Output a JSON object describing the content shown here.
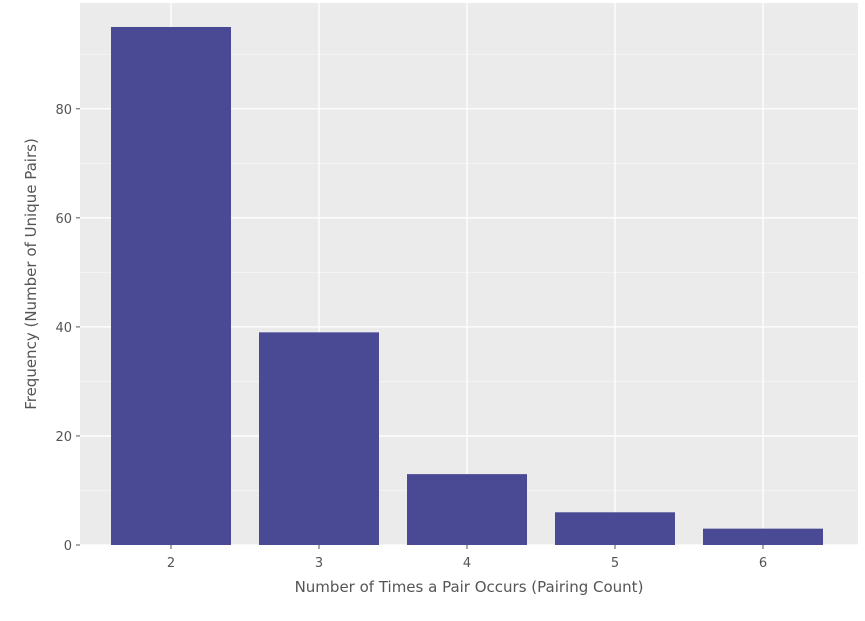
{
  "chart_data": {
    "type": "bar",
    "title": "",
    "categories": [
      "2",
      "3",
      "4",
      "5",
      "6"
    ],
    "values": [
      95,
      39,
      13,
      6,
      3
    ],
    "xlabel": "Number of Times a Pair Occurs (Pairing Count)",
    "ylabel": "Frequency (Number of Unique Pairs)",
    "ylim": [
      0,
      99.4
    ],
    "yticks": [
      0,
      20,
      40,
      60,
      80
    ],
    "grid": true,
    "colors": {
      "bar": "#4a4a94",
      "background": "#ebebeb",
      "grid": "#ffffff"
    }
  }
}
